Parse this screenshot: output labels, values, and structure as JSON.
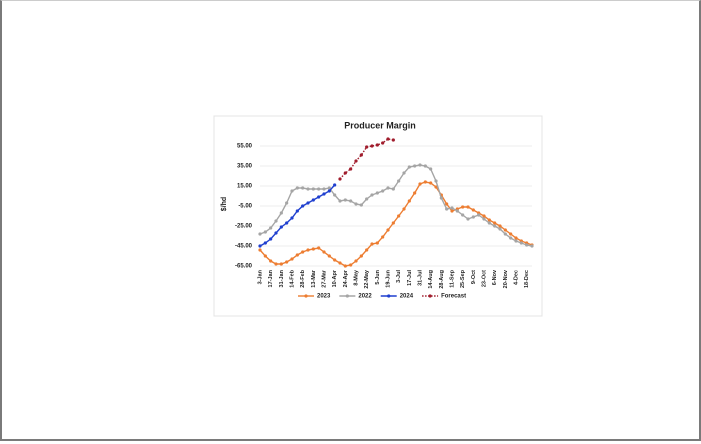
{
  "chart_data": {
    "type": "line",
    "title": "Producer Margin",
    "y_label": "$/hd",
    "categories": [
      "3-Jan",
      null,
      "17-Jan",
      null,
      "31-Jan",
      null,
      "14-Feb",
      null,
      "28-Feb",
      null,
      "13-Mar",
      null,
      "27-Mar",
      null,
      "10-Apr",
      null,
      "24-Apr",
      null,
      "8-May",
      null,
      "22-May",
      null,
      "5-Jun",
      null,
      "19-Jun",
      null,
      "3-Jul",
      null,
      "17-Jul",
      null,
      "31-Jul",
      null,
      "14-Aug",
      null,
      "28-Aug",
      null,
      "11-Sep",
      null,
      "25-Sep",
      null,
      "9-Oct",
      null,
      "23-Oct",
      null,
      "6-Nov",
      null,
      "20-Nov",
      null,
      "4-Dec",
      null,
      "18-Dec",
      null
    ],
    "series": [
      {
        "name": "2023",
        "color": "#ed7d31",
        "values": [
          -49,
          -55,
          -60,
          -63,
          -63,
          -61,
          -58,
          -54,
          -51,
          -49,
          -48,
          -47,
          -51,
          -55,
          -59,
          -62,
          -65,
          -64,
          -60,
          -55,
          -49,
          -43,
          -42,
          -36,
          -29,
          -22,
          -15,
          -8,
          0,
          8,
          17,
          19,
          18,
          14,
          6,
          -3,
          -10,
          -8,
          -6,
          -6,
          -9,
          -12,
          -15,
          -19,
          -22,
          -25,
          -29,
          -33,
          -37,
          -40,
          -42,
          -44
        ]
      },
      {
        "name": "2022",
        "color": "#a5a5a5",
        "values": [
          -33,
          -31,
          -27,
          -20,
          -12,
          -2,
          10,
          13,
          13,
          12,
          12,
          12,
          12,
          13,
          6,
          0,
          1,
          0,
          -3,
          -4,
          2,
          6,
          8,
          10,
          13,
          12,
          20,
          28,
          34,
          35,
          36,
          35,
          32,
          20,
          3,
          -8,
          -7,
          -10,
          -14,
          -18,
          -16,
          -14,
          -18,
          -22,
          -25,
          -28,
          -33,
          -37,
          -40,
          -42,
          -44,
          -45
        ]
      },
      {
        "name": "2024",
        "color": "#1f3fcf",
        "values": [
          -45,
          -42,
          -38,
          -32,
          -26,
          -22,
          -17,
          -10,
          -5,
          -2,
          1,
          4,
          7,
          10,
          16,
          null,
          null,
          null,
          null,
          null,
          null,
          null,
          null,
          null,
          null,
          null,
          null,
          null,
          null,
          null,
          null,
          null,
          null,
          null,
          null,
          null,
          null,
          null,
          null,
          null,
          null,
          null,
          null,
          null,
          null,
          null,
          null,
          null,
          null,
          null,
          null,
          null
        ]
      },
      {
        "name": "Forecast",
        "color": "#a01c2c",
        "line_style": "dotted",
        "values": [
          null,
          null,
          null,
          null,
          null,
          null,
          null,
          null,
          null,
          null,
          null,
          null,
          null,
          null,
          null,
          22,
          28,
          32,
          40,
          46,
          54,
          55,
          56,
          58,
          62,
          61,
          null,
          null,
          null,
          null,
          null,
          null,
          null,
          null,
          null,
          null,
          null,
          null,
          null,
          null,
          null,
          null,
          null,
          null,
          null,
          null,
          null,
          null,
          null,
          null,
          null,
          null
        ]
      }
    ],
    "ylim": [
      -65,
      55
    ],
    "yticks": [
      {
        "value": -65,
        "label": "-65.00"
      },
      {
        "value": -45,
        "label": "-45.00"
      },
      {
        "value": -25,
        "label": "-25.00"
      },
      {
        "value": -5,
        "label": "-5.00"
      },
      {
        "value": 15,
        "label": "15.00"
      },
      {
        "value": 35,
        "label": "35.00"
      },
      {
        "value": 55,
        "label": "55.00"
      }
    ],
    "grid": true,
    "legend": "bottom"
  }
}
